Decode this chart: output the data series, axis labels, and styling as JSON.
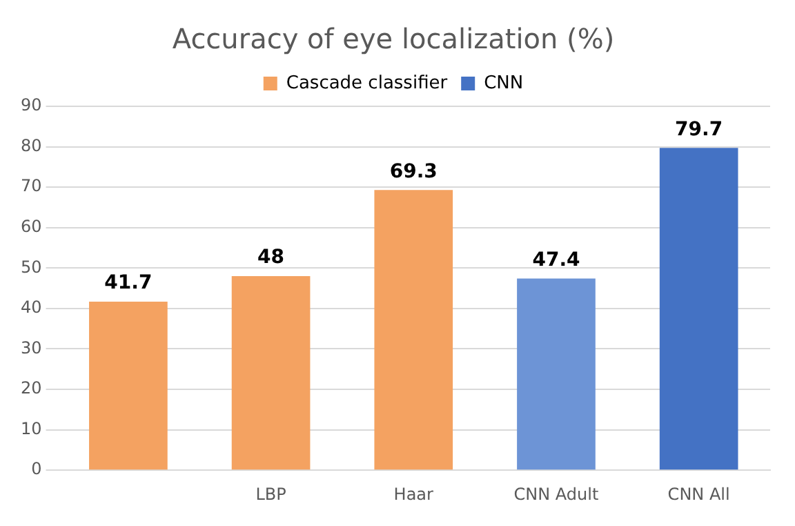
{
  "chart_data": {
    "type": "bar",
    "title": "Accuracy of eye localization (%)",
    "categories": [
      null,
      "LBP",
      "Haar",
      "CNN Adult",
      "CNN All"
    ],
    "series": [
      {
        "name": "Cascade classifier",
        "color": "#f4a261",
        "values": [
          41.7,
          48,
          69.3,
          null,
          null
        ]
      },
      {
        "name": "CNN",
        "color": "#4472c4",
        "colors": [
          "#4472c4",
          "#4472c4",
          "#4472c4",
          "#6d94d6",
          "#4472c4"
        ],
        "values": [
          null,
          null,
          null,
          47.4,
          79.7
        ]
      }
    ],
    "ylim": [
      0,
      90
    ],
    "yticks": [
      0,
      10,
      20,
      30,
      40,
      50,
      60,
      70,
      80,
      90
    ],
    "grid": "y",
    "legend": "top",
    "data_labels": true
  }
}
